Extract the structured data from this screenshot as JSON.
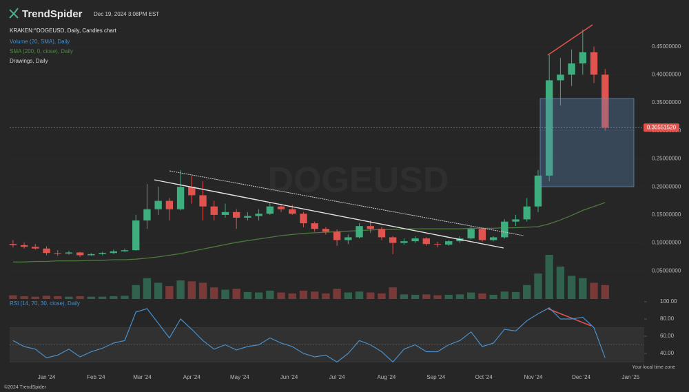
{
  "header": {
    "logo": "TrendSpider",
    "timestamp": "Dec 19, 2024 3:08PM EST",
    "symbol": "KRAKEN:^DOGEUSD, Daily, Candles chart",
    "indicators": [
      "Volume (20, SMA), Daily",
      "SMA (200, 0, close), Daily",
      "Drawings, Daily"
    ],
    "watermark": "DOGEUSD",
    "timezone": "Your local time zone",
    "copyright": "©2024 TrendSpider"
  },
  "chart_data": [
    {
      "type": "candlestick",
      "up_color": "#3fae7f",
      "down_color": "#e0534e",
      "open": [
        0.098,
        0.096,
        0.093,
        0.09,
        0.082,
        0.081,
        0.083,
        0.078,
        0.08,
        0.082,
        0.085,
        0.087,
        0.14,
        0.16,
        0.175,
        0.16,
        0.2,
        0.185,
        0.165,
        0.15,
        0.155,
        0.145,
        0.148,
        0.152,
        0.165,
        0.16,
        0.152,
        0.135,
        0.125,
        0.12,
        0.105,
        0.11,
        0.13,
        0.125,
        0.11,
        0.1,
        0.103,
        0.108,
        0.098,
        0.097,
        0.103,
        0.108,
        0.125,
        0.105,
        0.11,
        0.138,
        0.142,
        0.165,
        0.22,
        0.39,
        0.4,
        0.42,
        0.44,
        0.4
      ],
      "high": [
        0.105,
        0.101,
        0.098,
        0.094,
        0.087,
        0.086,
        0.084,
        0.082,
        0.084,
        0.088,
        0.09,
        0.15,
        0.205,
        0.2,
        0.18,
        0.23,
        0.22,
        0.21,
        0.175,
        0.17,
        0.16,
        0.155,
        0.16,
        0.172,
        0.17,
        0.168,
        0.155,
        0.138,
        0.128,
        0.124,
        0.115,
        0.135,
        0.14,
        0.128,
        0.112,
        0.108,
        0.112,
        0.11,
        0.102,
        0.105,
        0.112,
        0.13,
        0.127,
        0.112,
        0.142,
        0.15,
        0.18,
        0.23,
        0.435,
        0.43,
        0.445,
        0.48,
        0.45,
        0.41
      ],
      "low": [
        0.092,
        0.09,
        0.088,
        0.078,
        0.077,
        0.079,
        0.075,
        0.077,
        0.078,
        0.08,
        0.084,
        0.086,
        0.125,
        0.15,
        0.14,
        0.158,
        0.17,
        0.14,
        0.14,
        0.145,
        0.125,
        0.14,
        0.14,
        0.15,
        0.155,
        0.15,
        0.128,
        0.12,
        0.115,
        0.095,
        0.098,
        0.108,
        0.118,
        0.105,
        0.08,
        0.097,
        0.1,
        0.095,
        0.092,
        0.095,
        0.1,
        0.106,
        0.102,
        0.103,
        0.108,
        0.13,
        0.138,
        0.155,
        0.21,
        0.345,
        0.38,
        0.4,
        0.385,
        0.3
      ],
      "close": [
        0.096,
        0.093,
        0.09,
        0.082,
        0.081,
        0.083,
        0.078,
        0.08,
        0.082,
        0.085,
        0.087,
        0.14,
        0.16,
        0.175,
        0.16,
        0.2,
        0.185,
        0.165,
        0.15,
        0.155,
        0.145,
        0.148,
        0.152,
        0.165,
        0.16,
        0.152,
        0.135,
        0.125,
        0.12,
        0.105,
        0.11,
        0.13,
        0.125,
        0.11,
        0.1,
        0.103,
        0.108,
        0.098,
        0.097,
        0.103,
        0.108,
        0.125,
        0.105,
        0.11,
        0.138,
        0.142,
        0.165,
        0.22,
        0.39,
        0.4,
        0.42,
        0.44,
        0.4,
        0.3055152
      ],
      "volume": [
        8,
        6,
        5,
        7,
        6,
        5,
        6,
        5,
        5,
        6,
        7,
        30,
        45,
        35,
        28,
        40,
        38,
        35,
        25,
        20,
        22,
        15,
        14,
        18,
        14,
        12,
        18,
        16,
        12,
        22,
        14,
        16,
        14,
        12,
        25,
        10,
        9,
        10,
        8,
        9,
        10,
        14,
        12,
        9,
        16,
        15,
        30,
        55,
        95,
        70,
        50,
        45,
        35,
        30
      ],
      "sma": {
        "name": "SMA (200, 0, close), Daily",
        "color": "#4c7a3e",
        "values": [
          0.066,
          0.066,
          0.067,
          0.067,
          0.068,
          0.068,
          0.068,
          0.069,
          0.069,
          0.07,
          0.07,
          0.071,
          0.073,
          0.075,
          0.078,
          0.081,
          0.085,
          0.089,
          0.093,
          0.097,
          0.101,
          0.104,
          0.107,
          0.11,
          0.113,
          0.115,
          0.117,
          0.118,
          0.119,
          0.12,
          0.121,
          0.122,
          0.123,
          0.124,
          0.124,
          0.125,
          0.125,
          0.125,
          0.125,
          0.125,
          0.125,
          0.126,
          0.126,
          0.126,
          0.127,
          0.127,
          0.128,
          0.129,
          0.134,
          0.141,
          0.149,
          0.158,
          0.165,
          0.172
        ]
      },
      "last_price": {
        "value": 0.3055152,
        "label": "0.30551520"
      },
      "xlim": [
        -0.3,
        56.5
      ],
      "xticks": [
        {
          "value": 3,
          "label": "Jan '24"
        },
        {
          "value": 7.43,
          "label": "Feb '24"
        },
        {
          "value": 11.57,
          "label": "Mar '24"
        },
        {
          "value": 16,
          "label": "Apr '24"
        },
        {
          "value": 20.29,
          "label": "May '24"
        },
        {
          "value": 24.71,
          "label": "Jun '24"
        },
        {
          "value": 29,
          "label": "Jul '24"
        },
        {
          "value": 33.43,
          "label": "Aug '24"
        },
        {
          "value": 37.86,
          "label": "Sep '24"
        },
        {
          "value": 42.14,
          "label": "Oct '24"
        },
        {
          "value": 46.57,
          "label": "Nov '24"
        },
        {
          "value": 50.86,
          "label": "Dec '24"
        },
        {
          "value": 55.29,
          "label": "Jan '25"
        }
      ],
      "ylim": [
        0,
        0.484
      ],
      "yticks": [
        {
          "value": 0.05,
          "label": "0.05000000"
        },
        {
          "value": 0.1,
          "label": "0.10000000"
        },
        {
          "value": 0.15,
          "label": "0.15000000"
        },
        {
          "value": 0.2,
          "label": "0.20000000"
        },
        {
          "value": 0.25,
          "label": "0.25000000"
        },
        {
          "value": 0.3,
          "label": "0.30000000"
        },
        {
          "value": 0.35,
          "label": "0.35000000"
        },
        {
          "value": 0.4,
          "label": "0.40000000"
        },
        {
          "value": 0.45,
          "label": "0.45000000"
        }
      ]
    },
    {
      "type": "line",
      "title": "RSI (14, 70, 30, close), Daily",
      "color": "#4a8fc9",
      "values": [
        55,
        48,
        45,
        35,
        38,
        45,
        36,
        42,
        46,
        52,
        55,
        88,
        92,
        75,
        58,
        80,
        68,
        55,
        45,
        50,
        44,
        48,
        50,
        58,
        52,
        48,
        40,
        36,
        38,
        30,
        40,
        55,
        50,
        42,
        30,
        45,
        50,
        42,
        42,
        50,
        55,
        65,
        48,
        52,
        68,
        66,
        78,
        86,
        93,
        80,
        80,
        82,
        70,
        35
      ],
      "bands": [
        30,
        70
      ],
      "midline": 50,
      "ylim": [
        28,
        100
      ],
      "yticks": [
        {
          "value": 40,
          "label": "40.00"
        },
        {
          "value": 60,
          "label": "60.00"
        },
        {
          "value": 80,
          "label": "80.00"
        },
        {
          "value": 100,
          "label": "100.00"
        }
      ]
    }
  ]
}
